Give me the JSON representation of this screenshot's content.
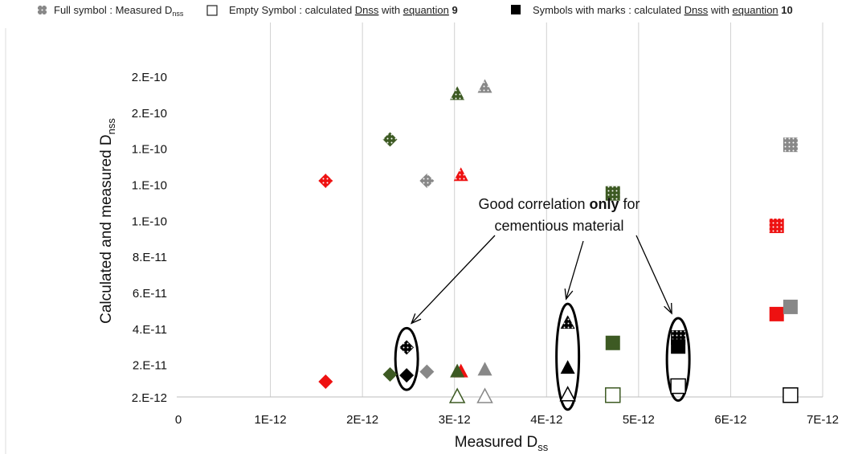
{
  "chart_data": {
    "type": "scatter",
    "ylabel": "Calculated and measured D",
    "ylabel_sub": "nss",
    "xlabel": "Measured D",
    "xlabel_sub": "ss",
    "legend": {
      "full_prefix": "Full symbol : Measured D",
      "full_sub": "nss",
      "empty_prefix": "Empty Symbol  : calculated ",
      "empty_underlined1": "Dnss",
      "empty_middle": " with ",
      "empty_underlined2": "equantion",
      "empty_bold": " 9",
      "marks_prefix": "Symbols with marks  : calculated ",
      "marks_underlined1": "Dnss",
      "marks_middle": " with ",
      "marks_underlined2": "equantion",
      "marks_bold": " 10"
    },
    "x_ticks": [
      "0",
      "1E-12",
      "2E-12",
      "3E-12",
      "4E-12",
      "5E-12",
      "6E-12",
      "7E-12"
    ],
    "x_tick_values": [
      0,
      1e-12,
      2e-12,
      3e-12,
      4e-12,
      5e-12,
      6e-12,
      7e-12
    ],
    "y_ticks": [
      "2.E-12",
      "2.E-11",
      "4.E-11",
      "6.E-11",
      "8.E-11",
      "1.E-10",
      "1.E-10",
      "1.E-10",
      "2.E-10",
      "2.E-10"
    ],
    "y_tick_values": [
      2e-12,
      2e-11,
      4e-11,
      6e-11,
      8e-11,
      1e-10,
      1.2e-10,
      1.4e-10,
      1.6e-10,
      1.8e-10
    ],
    "xlim": [
      0,
      7e-12
    ],
    "ylim": [
      2e-12,
      1.8e-10
    ],
    "grid": "vertical",
    "points": [
      {
        "shape": "diamond",
        "color": "#ee1111",
        "style": "dotted",
        "x": 1.6e-12,
        "y": 1.22e-10
      },
      {
        "shape": "diamond",
        "color": "#ee1111",
        "style": "solid",
        "x": 1.6e-12,
        "y": 1.05e-11
      },
      {
        "shape": "diamond",
        "color": "#3d5a23",
        "style": "dotted",
        "x": 2.3e-12,
        "y": 1.45e-10
      },
      {
        "shape": "diamond",
        "color": "#3d5a23",
        "style": "solid",
        "x": 2.3e-12,
        "y": 1.45e-11
      },
      {
        "shape": "diamond",
        "color": "#000000",
        "style": "dotted",
        "x": 2.48e-12,
        "y": 2.95e-11
      },
      {
        "shape": "diamond",
        "color": "#000000",
        "style": "solid",
        "x": 2.48e-12,
        "y": 1.4e-11
      },
      {
        "shape": "diamond",
        "color": "#888888",
        "style": "dotted",
        "x": 2.7e-12,
        "y": 1.22e-10
      },
      {
        "shape": "diamond",
        "color": "#888888",
        "style": "solid",
        "x": 2.7e-12,
        "y": 1.6e-11
      },
      {
        "shape": "triangle",
        "color": "#3d5a23",
        "style": "dotted",
        "x": 3.03e-12,
        "y": 1.7e-10
      },
      {
        "shape": "triangle",
        "color": "#ee1111",
        "style": "dotted",
        "x": 3.07e-12,
        "y": 1.25e-10
      },
      {
        "shape": "triangle",
        "color": "#888888",
        "style": "dotted",
        "x": 3.33e-12,
        "y": 1.74e-10
      },
      {
        "shape": "triangle",
        "color": "#ee1111",
        "style": "solid",
        "x": 3.07e-12,
        "y": 1.6e-11
      },
      {
        "shape": "triangle",
        "color": "#3d5a23",
        "style": "solid",
        "x": 3.03e-12,
        "y": 1.6e-11
      },
      {
        "shape": "triangle",
        "color": "#888888",
        "style": "solid",
        "x": 3.33e-12,
        "y": 1.7e-11
      },
      {
        "shape": "triangle",
        "color": "#3d5a23",
        "style": "empty",
        "x": 3.03e-12,
        "y": 2e-12
      },
      {
        "shape": "triangle",
        "color": "#888888",
        "style": "empty",
        "x": 3.33e-12,
        "y": 2e-12
      },
      {
        "shape": "triangle",
        "color": "#000000",
        "style": "dotted",
        "x": 4.23e-12,
        "y": 4.3e-11
      },
      {
        "shape": "triangle",
        "color": "#000000",
        "style": "solid",
        "x": 4.23e-12,
        "y": 1.8e-11
      },
      {
        "shape": "triangle",
        "color": "#000000",
        "style": "empty",
        "x": 4.23e-12,
        "y": 3e-12
      },
      {
        "shape": "square",
        "color": "#3d5a23",
        "style": "dotted",
        "x": 4.72e-12,
        "y": 1.15e-10
      },
      {
        "shape": "square",
        "color": "#3d5a23",
        "style": "solid",
        "x": 4.72e-12,
        "y": 3.2e-11
      },
      {
        "shape": "square",
        "color": "#3d5a23",
        "style": "empty",
        "x": 4.72e-12,
        "y": 3e-12
      },
      {
        "shape": "square",
        "color": "#000000",
        "style": "dotted",
        "x": 5.43e-12,
        "y": 3.5e-11
      },
      {
        "shape": "square",
        "color": "#000000",
        "style": "solid",
        "x": 5.43e-12,
        "y": 3e-11
      },
      {
        "shape": "square",
        "color": "#000000",
        "style": "empty",
        "x": 5.43e-12,
        "y": 8e-12
      },
      {
        "shape": "square",
        "color": "#ee1111",
        "style": "dotted",
        "x": 6.5e-12,
        "y": 9.7e-11
      },
      {
        "shape": "square",
        "color": "#ee1111",
        "style": "solid",
        "x": 6.5e-12,
        "y": 4.8e-11
      },
      {
        "shape": "square",
        "color": "#888888",
        "style": "dotted",
        "x": 6.65e-12,
        "y": 1.42e-10
      },
      {
        "shape": "square",
        "color": "#888888",
        "style": "solid",
        "x": 6.65e-12,
        "y": 5.2e-11
      },
      {
        "shape": "square",
        "color": "#000000",
        "style": "empty",
        "x": 6.65e-12,
        "y": 3e-12
      }
    ],
    "annotation": {
      "line1": "Good correlation ",
      "line1_bold": "only",
      "line1_after": " for",
      "line2": "cementious material"
    },
    "highlighted_groups": [
      {
        "x": 2.48e-12,
        "y_low": 1.4e-11,
        "y_high": 2.95e-11
      },
      {
        "x": 4.23e-12,
        "y_low": 3e-12,
        "y_high": 4.3e-11
      },
      {
        "x": 5.43e-12,
        "y_low": 8e-12,
        "y_high": 3.5e-11
      }
    ],
    "colors": {
      "red": "#ee1111",
      "green": "#3d5a23",
      "gray": "#888888",
      "black": "#000000",
      "grid": "#d0d0d0"
    }
  }
}
